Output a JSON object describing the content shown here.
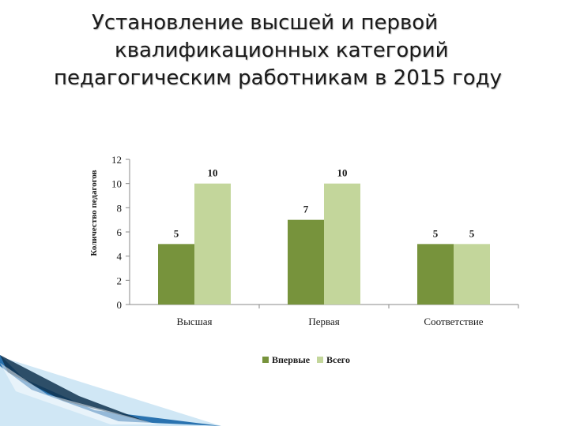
{
  "title": {
    "line1": "Установление высшей и первой",
    "line2": "квалификационных категорий",
    "line3": "педагогическим работникам в 2015 году"
  },
  "chart_data": {
    "type": "bar",
    "categories": [
      "Высшая",
      "Первая",
      "Соответствие"
    ],
    "series": [
      {
        "name": "Впервые",
        "values": [
          5,
          7,
          5
        ],
        "color": "#77933c"
      },
      {
        "name": "Всего",
        "values": [
          10,
          10,
          5
        ],
        "color": "#c3d69b"
      }
    ],
    "ylabel": "Количество педагогов",
    "ylim": [
      0,
      12
    ],
    "yticks": [
      0,
      2,
      4,
      6,
      8,
      10,
      12
    ],
    "grid": false,
    "legend_position": "bottom"
  },
  "colors": {
    "title": "#1a1a1a",
    "axis": "#888888",
    "decor_blue": "#2a73b0",
    "decor_light": "#a9d3ec"
  }
}
